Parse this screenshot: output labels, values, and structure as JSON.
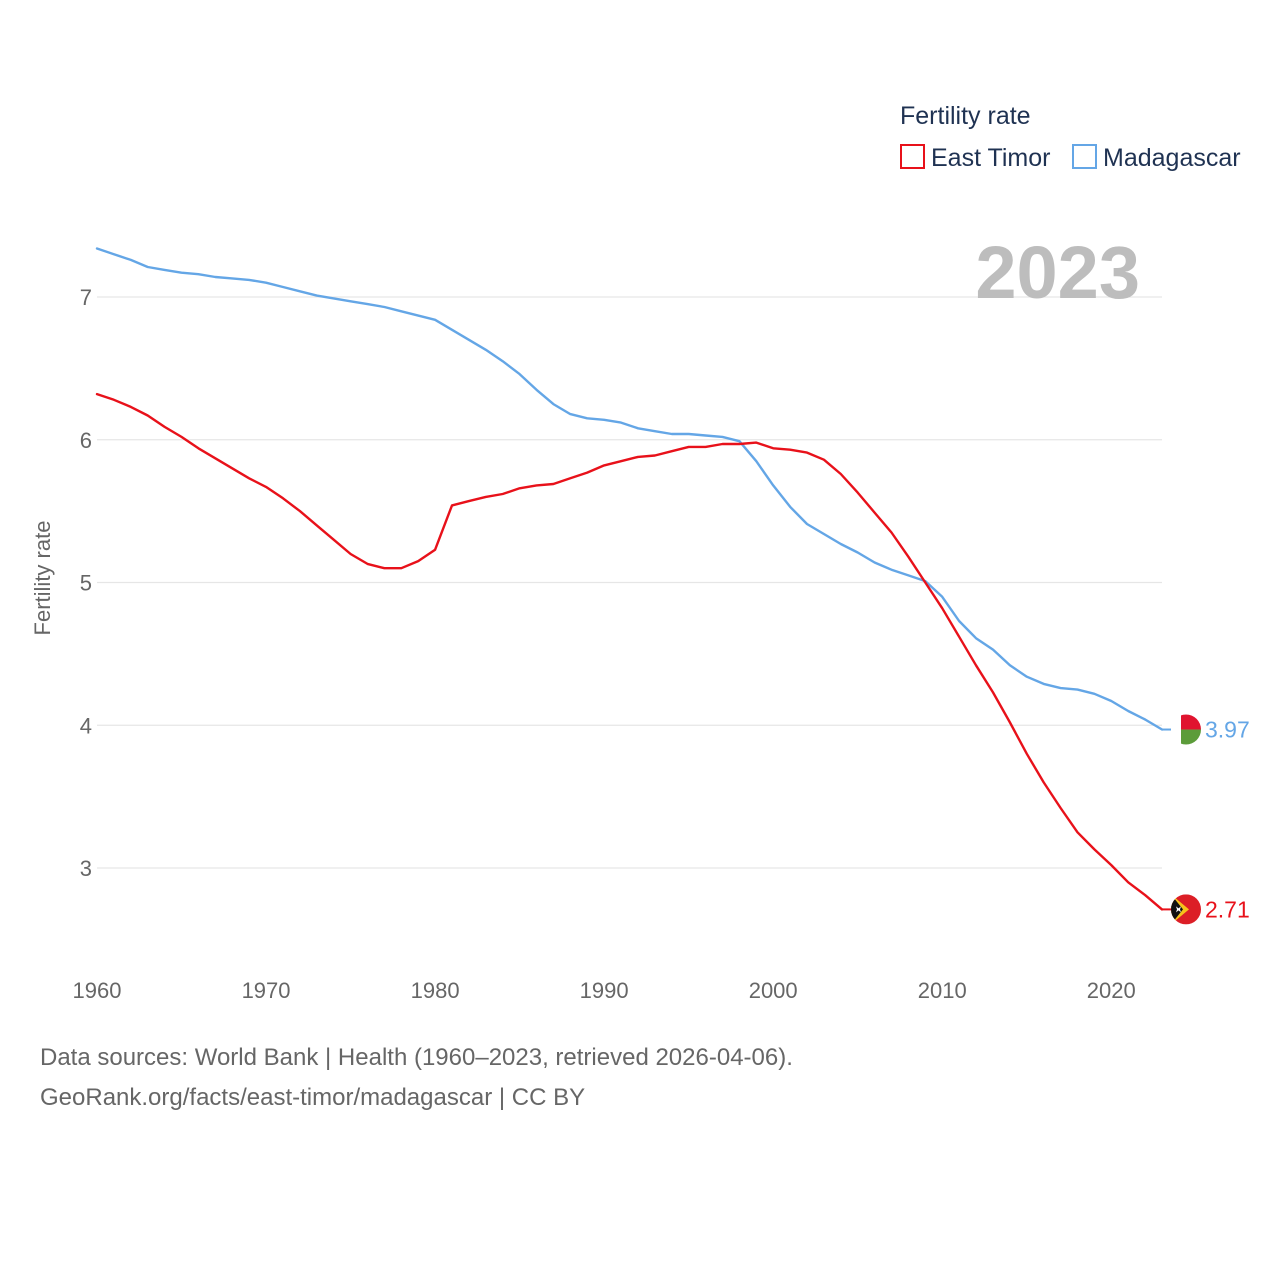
{
  "chart_data": {
    "type": "line",
    "title": "Fertility rate",
    "ylabel": "Fertility rate",
    "xlabel": "",
    "current_year": "2023",
    "x_ticks": [
      1960,
      1970,
      1980,
      1990,
      2000,
      2010,
      2020
    ],
    "y_ticks": [
      3,
      4,
      5,
      6,
      7
    ],
    "xlim": [
      1960,
      2023
    ],
    "ylim": [
      2.5,
      7.5
    ],
    "grid": true,
    "legend_position": "top-right",
    "x": [
      1960,
      1961,
      1962,
      1963,
      1964,
      1965,
      1966,
      1967,
      1968,
      1969,
      1970,
      1971,
      1972,
      1973,
      1974,
      1975,
      1976,
      1977,
      1978,
      1979,
      1980,
      1981,
      1982,
      1983,
      1984,
      1985,
      1986,
      1987,
      1988,
      1989,
      1990,
      1991,
      1992,
      1993,
      1994,
      1995,
      1996,
      1997,
      1998,
      1999,
      2000,
      2001,
      2002,
      2003,
      2004,
      2005,
      2006,
      2007,
      2008,
      2009,
      2010,
      2011,
      2012,
      2013,
      2014,
      2015,
      2016,
      2017,
      2018,
      2019,
      2020,
      2021,
      2022,
      2023
    ],
    "series": [
      {
        "name": "East Timor",
        "color": "#e8111a",
        "end_label": "2.71",
        "flag": "east-timor",
        "values": [
          6.32,
          6.28,
          6.23,
          6.17,
          6.09,
          6.02,
          5.94,
          5.87,
          5.8,
          5.73,
          5.67,
          5.59,
          5.5,
          5.4,
          5.3,
          5.2,
          5.13,
          5.1,
          5.1,
          5.15,
          5.23,
          5.54,
          5.57,
          5.6,
          5.62,
          5.66,
          5.68,
          5.69,
          5.73,
          5.77,
          5.82,
          5.85,
          5.88,
          5.89,
          5.92,
          5.95,
          5.95,
          5.97,
          5.97,
          5.98,
          5.94,
          5.93,
          5.91,
          5.86,
          5.76,
          5.63,
          5.49,
          5.35,
          5.18,
          5.0,
          4.82,
          4.62,
          4.42,
          4.23,
          4.02,
          3.8,
          3.6,
          3.42,
          3.25,
          3.13,
          3.02,
          2.9,
          2.81,
          2.71
        ]
      },
      {
        "name": "Madagascar",
        "color": "#64a6e6",
        "end_label": "3.97",
        "flag": "madagascar",
        "values": [
          7.34,
          7.3,
          7.26,
          7.21,
          7.19,
          7.17,
          7.16,
          7.14,
          7.13,
          7.12,
          7.1,
          7.07,
          7.04,
          7.01,
          6.99,
          6.97,
          6.95,
          6.93,
          6.9,
          6.87,
          6.84,
          6.77,
          6.7,
          6.63,
          6.55,
          6.46,
          6.35,
          6.25,
          6.18,
          6.15,
          6.14,
          6.12,
          6.08,
          6.06,
          6.04,
          6.04,
          6.03,
          6.02,
          5.99,
          5.85,
          5.68,
          5.53,
          5.41,
          5.34,
          5.27,
          5.21,
          5.14,
          5.09,
          5.05,
          5.01,
          4.9,
          4.73,
          4.61,
          4.53,
          4.42,
          4.34,
          4.29,
          4.26,
          4.25,
          4.22,
          4.17,
          4.1,
          4.04,
          3.97
        ]
      }
    ]
  },
  "footer": {
    "line1": "Data sources: World Bank | Health (1960–2023, retrieved 2026-04-06).",
    "line2": "GeoRank.org/facts/east-timor/madagascar | CC BY"
  }
}
